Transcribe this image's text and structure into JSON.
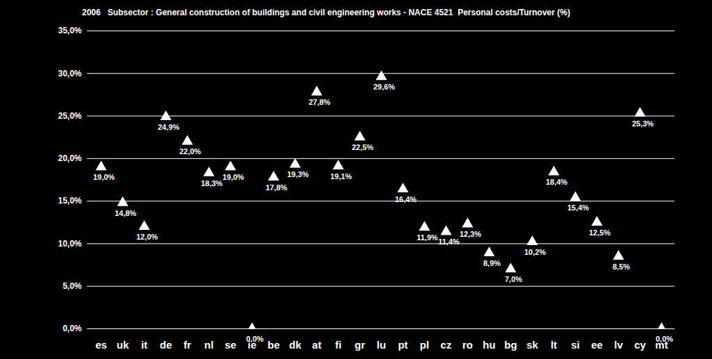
{
  "chart_data": {
    "type": "scatter",
    "title": "2006   Subsector : General construction of buildings and civil engineering works - NACE 4521  Personal costs/Turnover (%)",
    "categories": [
      "es",
      "uk",
      "it",
      "de",
      "fr",
      "nl",
      "se",
      "ie",
      "be",
      "dk",
      "at",
      "fi",
      "gr",
      "lu",
      "pt",
      "pl",
      "cz",
      "ro",
      "hu",
      "bg",
      "sk",
      "lt",
      "si",
      "ee",
      "lv",
      "cy",
      "mt"
    ],
    "values": [
      19.0,
      14.8,
      12.0,
      24.9,
      22.0,
      18.3,
      19.0,
      0.0,
      17.8,
      19.3,
      27.8,
      19.1,
      22.5,
      29.6,
      16.4,
      11.9,
      11.4,
      12.3,
      8.9,
      7.0,
      10.2,
      18.4,
      15.4,
      12.5,
      8.5,
      25.3,
      0.0
    ],
    "value_labels": [
      "19,0%",
      "14,8%",
      "12,0%",
      "24,9%",
      "22,0%",
      "18,3%",
      "19,0%",
      "0,0%",
      "17,8%",
      "19,3%",
      "27,8%",
      "19,1%",
      "22,5%",
      "29,6%",
      "16,4%",
      "11,9%",
      "11,4%",
      "12,3%",
      "8,9%",
      "7,0%",
      "10,2%",
      "18,4%",
      "15,4%",
      "12,5%",
      "8,5%",
      "25,3%",
      "0,0%"
    ],
    "data_labels": true,
    "color": "#ffffff",
    "marker": "triangle",
    "ylim": [
      0,
      35
    ],
    "yticks": [
      {
        "value": 0,
        "label": "0,0%"
      },
      {
        "value": 5,
        "label": "5,0%"
      },
      {
        "value": 10,
        "label": "10,0%"
      },
      {
        "value": 15,
        "label": "15,0%"
      },
      {
        "value": 20,
        "label": "20,0%"
      },
      {
        "value": 25,
        "label": "25,0%"
      },
      {
        "value": 30,
        "label": "30,0%"
      },
      {
        "value": 35,
        "label": "35,0%"
      }
    ],
    "grid": true
  }
}
